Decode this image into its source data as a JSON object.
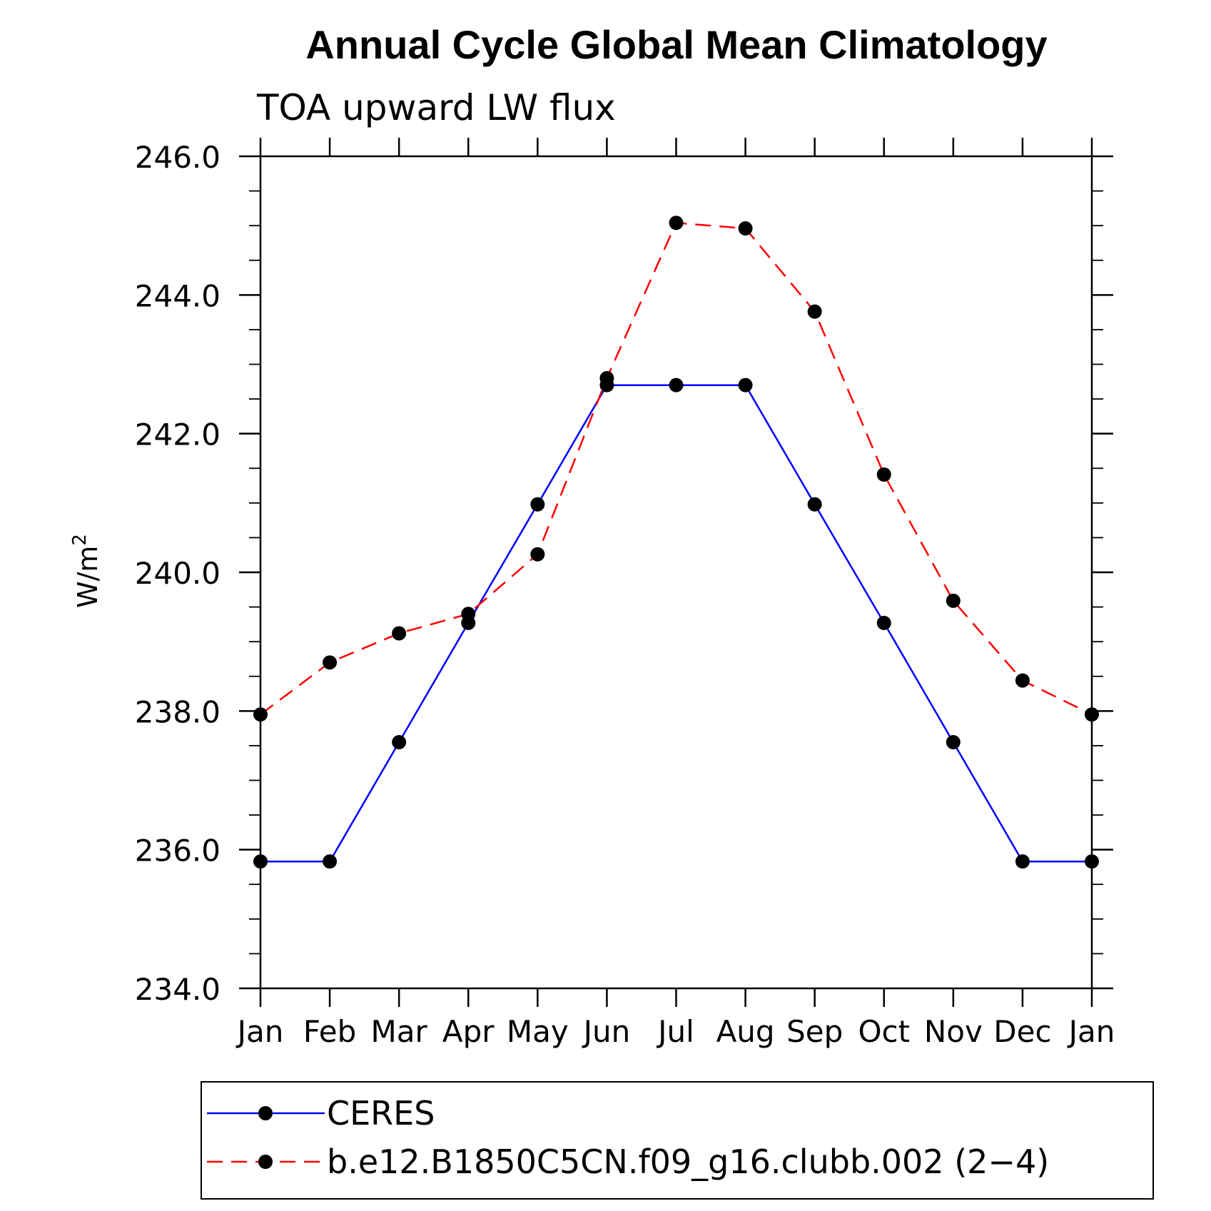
{
  "chart_data": {
    "type": "line",
    "title": "Annual Cycle Global Mean Climatology",
    "subtitle": "TOA upward LW flux",
    "ylabel": "W/m",
    "ylabel_superscript": "2",
    "x": [
      "Jan",
      "Feb",
      "Mar",
      "Apr",
      "May",
      "Jun",
      "Jul",
      "Aug",
      "Sep",
      "Oct",
      "Nov",
      "Dec",
      "Jan"
    ],
    "ylim": [
      234.0,
      246.0
    ],
    "yticks": [
      234.0,
      236.0,
      238.0,
      240.0,
      242.0,
      244.0,
      246.0
    ],
    "ytick_labels": [
      "234.0",
      "236.0",
      "238.0",
      "240.0",
      "242.0",
      "244.0",
      "246.0"
    ],
    "y_minor_step": 0.5,
    "grid": false,
    "legend_position": "bottom",
    "series": [
      {
        "name": "CERES",
        "color": "#0000ff",
        "dash": "solid",
        "marker": "filled-circle",
        "values": [
          235.83,
          235.83,
          237.55,
          239.27,
          240.98,
          242.7,
          242.7,
          242.7,
          240.98,
          239.27,
          237.55,
          235.83,
          235.83
        ]
      },
      {
        "name": "b.e12.B1850C5CN.f09_g16.clubb.002 (2−4)",
        "color": "#ff0000",
        "dash": "dashed",
        "marker": "filled-circle",
        "values": [
          237.95,
          238.7,
          239.12,
          239.4,
          240.26,
          242.8,
          245.04,
          244.96,
          243.76,
          241.41,
          239.59,
          238.44,
          237.95
        ]
      }
    ]
  }
}
